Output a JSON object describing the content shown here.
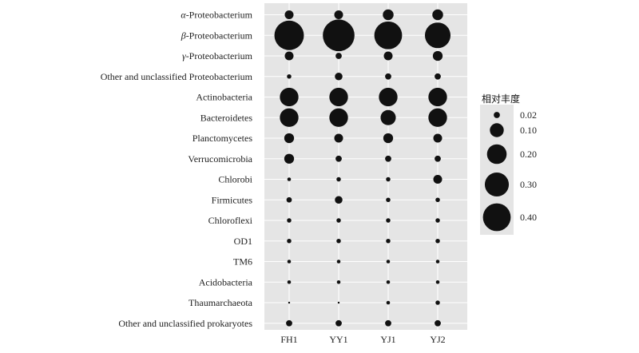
{
  "chart_data": {
    "type": "bubble",
    "categories_y": [
      {
        "greek": "α",
        "rest": "-Proteobacterium"
      },
      {
        "greek": "β",
        "rest": "-Proteobacterium"
      },
      {
        "greek": "γ",
        "rest": "-Proteobacterium"
      },
      {
        "greek": "",
        "rest": "Other and unclassified Proteobacterium"
      },
      {
        "greek": "",
        "rest": "Actinobacteria"
      },
      {
        "greek": "",
        "rest": "Bacteroidetes"
      },
      {
        "greek": "",
        "rest": "Planctomycetes"
      },
      {
        "greek": "",
        "rest": "Verrucomicrobia"
      },
      {
        "greek": "",
        "rest": "Chlorobi"
      },
      {
        "greek": "",
        "rest": "Firmicutes"
      },
      {
        "greek": "",
        "rest": "Chloroflexi"
      },
      {
        "greek": "",
        "rest": "OD1"
      },
      {
        "greek": "",
        "rest": "TM6"
      },
      {
        "greek": "",
        "rest": "Acidobacteria"
      },
      {
        "greek": "",
        "rest": "Thaumarchaeota"
      },
      {
        "greek": "",
        "rest": "Other and unclassified prokaryotes"
      }
    ],
    "categories_x": [
      "FH1",
      "YY1",
      "YJ1",
      "YJ2"
    ],
    "values": [
      [
        0.04,
        0.04,
        0.06,
        0.06
      ],
      [
        0.45,
        0.52,
        0.4,
        0.34
      ],
      [
        0.04,
        0.02,
        0.04,
        0.05
      ],
      [
        0.01,
        0.03,
        0.02,
        0.02
      ],
      [
        0.18,
        0.18,
        0.18,
        0.18
      ],
      [
        0.18,
        0.18,
        0.12,
        0.18
      ],
      [
        0.05,
        0.04,
        0.05,
        0.04
      ],
      [
        0.05,
        0.02,
        0.02,
        0.02
      ],
      [
        0.007,
        0.01,
        0.01,
        0.04
      ],
      [
        0.015,
        0.03,
        0.01,
        0.01
      ],
      [
        0.01,
        0.01,
        0.01,
        0.01
      ],
      [
        0.01,
        0.01,
        0.01,
        0.01
      ],
      [
        0.007,
        0.007,
        0.007,
        0.007
      ],
      [
        0.007,
        0.007,
        0.007,
        0.007
      ],
      [
        0.002,
        0.002,
        0.007,
        0.01
      ],
      [
        0.02,
        0.02,
        0.02,
        0.02
      ]
    ],
    "size_legend": {
      "title": "相对丰度",
      "breaks": [
        0.02,
        0.1,
        0.2,
        0.3,
        0.4
      ],
      "labels": [
        "0.02",
        "0.10",
        "0.20",
        "0.30",
        "0.40"
      ]
    },
    "grid": true,
    "panel_background": "#e5e5e5",
    "point_color": "#111111",
    "legend_position": "right"
  }
}
